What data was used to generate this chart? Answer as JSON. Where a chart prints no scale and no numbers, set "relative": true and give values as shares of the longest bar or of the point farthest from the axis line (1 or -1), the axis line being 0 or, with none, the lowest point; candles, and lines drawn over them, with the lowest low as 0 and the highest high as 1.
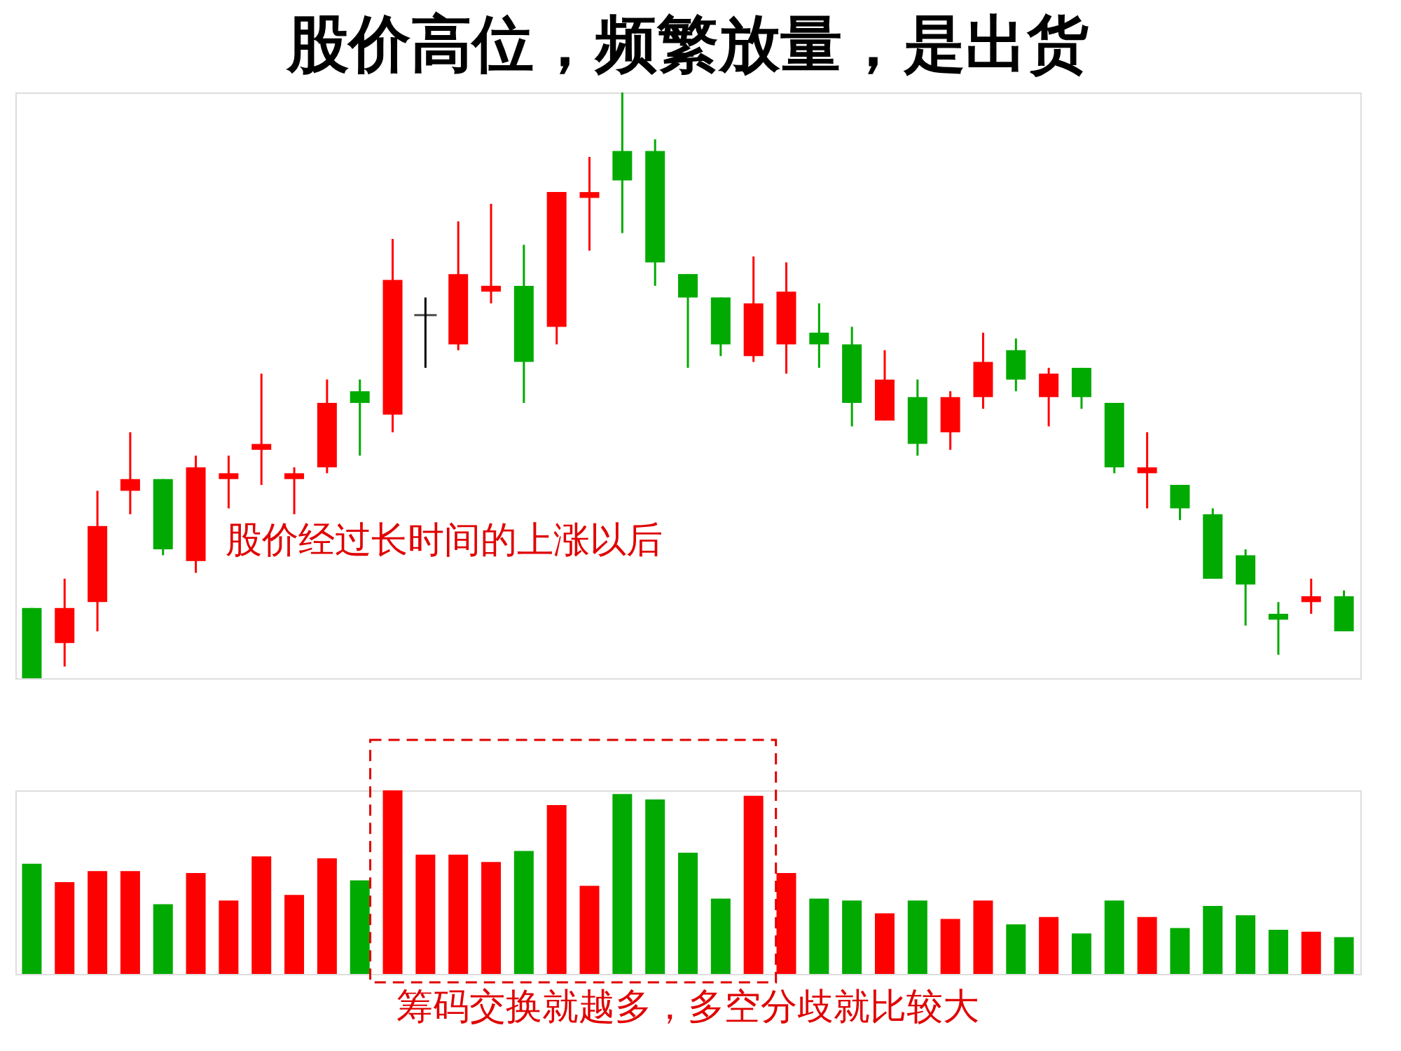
{
  "chart_data": [
    {
      "type": "candlestick",
      "title": "股价高位，频繁放量，是出货",
      "relative": true,
      "tick_labels": false,
      "annotations": [
        "股价经过长时间的上涨以后"
      ],
      "categories": [
        null,
        null,
        null,
        null,
        null,
        null,
        null,
        null,
        null,
        null,
        null,
        null,
        null,
        null,
        null,
        null,
        null,
        null,
        null,
        null,
        null,
        null,
        null,
        null,
        null,
        null,
        null,
        null,
        null,
        null,
        null,
        null,
        null,
        null,
        null,
        null,
        null,
        null,
        null,
        null,
        null
      ],
      "ohlc": [
        [
          0.12,
          0.12,
          0,
          0
        ],
        [
          0.06,
          0.17,
          0.02,
          0.12
        ],
        [
          0.13,
          0.32,
          0.08,
          0.26
        ],
        [
          0.32,
          0.42,
          0.28,
          0.34
        ],
        [
          0.34,
          0.34,
          0.21,
          0.22
        ],
        [
          0.2,
          0.38,
          0.18,
          0.36
        ],
        [
          0.34,
          0.38,
          0.29,
          0.35
        ],
        [
          0.39,
          0.52,
          0.33,
          0.4
        ],
        [
          0.34,
          0.36,
          0.28,
          0.35
        ],
        [
          0.36,
          0.51,
          0.35,
          0.47
        ],
        [
          0.49,
          0.51,
          0.38,
          0.47
        ],
        [
          0.45,
          0.75,
          0.42,
          0.68
        ],
        [
          0.62,
          0.65,
          0.53,
          0.62
        ],
        [
          0.57,
          0.78,
          0.56,
          0.69
        ],
        [
          0.66,
          0.81,
          0.64,
          0.67
        ],
        [
          0.67,
          0.74,
          0.47,
          0.54
        ],
        [
          0.6,
          0.83,
          0.57,
          0.83
        ],
        [
          0.82,
          0.89,
          0.73,
          0.83
        ],
        [
          0.9,
          1,
          0.76,
          0.85
        ],
        [
          0.9,
          0.92,
          0.67,
          0.71
        ],
        [
          0.69,
          0.69,
          0.53,
          0.65
        ],
        [
          0.65,
          0.65,
          0.55,
          0.57
        ],
        [
          0.55,
          0.72,
          0.54,
          0.64
        ],
        [
          0.57,
          0.71,
          0.52,
          0.66
        ],
        [
          0.59,
          0.64,
          0.53,
          0.57
        ],
        [
          0.57,
          0.6,
          0.43,
          0.47
        ],
        [
          0.44,
          0.56,
          0.44,
          0.51
        ],
        [
          0.48,
          0.51,
          0.38,
          0.4
        ],
        [
          0.42,
          0.49,
          0.39,
          0.48
        ],
        [
          0.48,
          0.59,
          0.46,
          0.54
        ],
        [
          0.56,
          0.58,
          0.49,
          0.51
        ],
        [
          0.48,
          0.53,
          0.43,
          0.52
        ],
        [
          0.53,
          0.53,
          0.46,
          0.48
        ],
        [
          0.47,
          0.47,
          0.35,
          0.36
        ],
        [
          0.35,
          0.42,
          0.29,
          0.36
        ],
        [
          0.33,
          0.33,
          0.27,
          0.29
        ],
        [
          0.28,
          0.29,
          0.17,
          0.17
        ],
        [
          0.21,
          0.22,
          0.09,
          0.16
        ],
        [
          0.11,
          0.13,
          0.04,
          0.1
        ],
        [
          0.13,
          0.17,
          0.11,
          0.14
        ],
        [
          0.14,
          0.15,
          0.08,
          0.08
        ]
      ],
      "colors": [
        "#00aa00",
        "#ff0000",
        "#ff0000",
        "#ff0000",
        "#00aa00",
        "#ff0000",
        "#ff0000",
        "#ff0000",
        "#ff0000",
        "#ff0000",
        "#00aa00",
        "#ff0000",
        "#000000",
        "#ff0000",
        "#ff0000",
        "#00aa00",
        "#ff0000",
        "#ff0000",
        "#00aa00",
        "#00aa00",
        "#00aa00",
        "#00aa00",
        "#ff0000",
        "#ff0000",
        "#00aa00",
        "#00aa00",
        "#ff0000",
        "#00aa00",
        "#ff0000",
        "#ff0000",
        "#00aa00",
        "#ff0000",
        "#00aa00",
        "#00aa00",
        "#ff0000",
        "#00aa00",
        "#00aa00",
        "#00aa00",
        "#00aa00",
        "#ff0000",
        "#00aa00"
      ]
    },
    {
      "type": "bar",
      "relative": true,
      "tick_labels": false,
      "annotations": [
        "筹码交换就越多，多空分歧就比较大"
      ],
      "categories": [
        null,
        null,
        null,
        null,
        null,
        null,
        null,
        null,
        null,
        null,
        null,
        null,
        null,
        null,
        null,
        null,
        null,
        null,
        null,
        null,
        null,
        null,
        null,
        null,
        null,
        null,
        null,
        null,
        null,
        null,
        null,
        null,
        null,
        null,
        null,
        null,
        null,
        null,
        null,
        null,
        null
      ],
      "values": [
        0.6,
        0.5,
        0.56,
        0.56,
        0.38,
        0.55,
        0.4,
        0.64,
        0.43,
        0.63,
        0.51,
        1,
        0.65,
        0.65,
        0.61,
        0.67,
        0.92,
        0.48,
        0.98,
        0.95,
        0.66,
        0.41,
        0.97,
        0.55,
        0.41,
        0.4,
        0.33,
        0.4,
        0.3,
        0.4,
        0.27,
        0.31,
        0.22,
        0.4,
        0.31,
        0.25,
        0.37,
        0.32,
        0.24,
        0.23,
        0.2
      ],
      "colors": [
        "#00aa00",
        "#ff0000",
        "#ff0000",
        "#ff0000",
        "#00aa00",
        "#ff0000",
        "#ff0000",
        "#ff0000",
        "#ff0000",
        "#ff0000",
        "#00aa00",
        "#ff0000",
        "#ff0000",
        "#ff0000",
        "#ff0000",
        "#00aa00",
        "#ff0000",
        "#ff0000",
        "#00aa00",
        "#00aa00",
        "#00aa00",
        "#00aa00",
        "#ff0000",
        "#ff0000",
        "#00aa00",
        "#00aa00",
        "#ff0000",
        "#00aa00",
        "#ff0000",
        "#ff0000",
        "#00aa00",
        "#ff0000",
        "#00aa00",
        "#00aa00",
        "#ff0000",
        "#00aa00",
        "#00aa00",
        "#00aa00",
        "#00aa00",
        "#ff0000",
        "#00aa00"
      ]
    }
  ]
}
